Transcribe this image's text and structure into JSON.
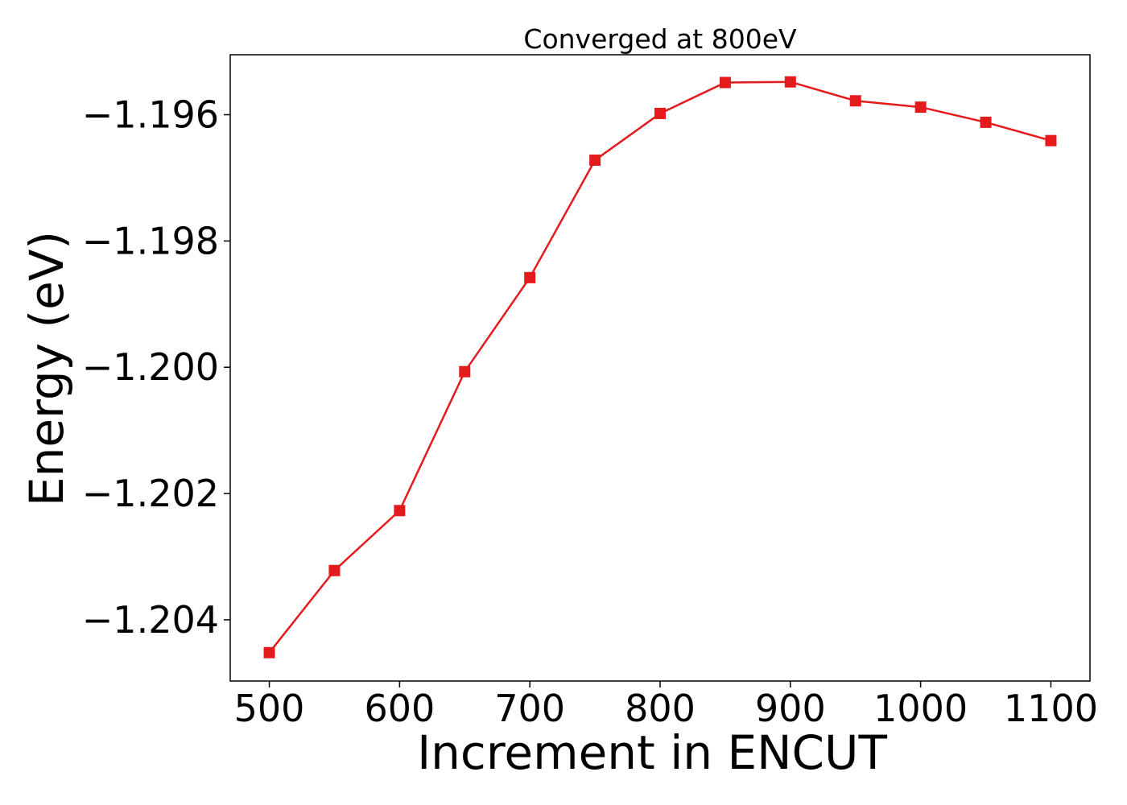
{
  "chart_data": {
    "type": "line",
    "title": "Converged at 800eV",
    "xlabel": "Increment in ENCUT",
    "ylabel": "Energy (eV)",
    "xlim": [
      470,
      1130
    ],
    "ylim": [
      -1.20497,
      -1.19505
    ],
    "xticks": [
      500,
      600,
      700,
      800,
      900,
      1000,
      1100
    ],
    "xtick_labels": [
      "500",
      "600",
      "700",
      "800",
      "900",
      "1000",
      "1100"
    ],
    "yticks": [
      -1.196,
      -1.198,
      -1.2,
      -1.202,
      -1.204
    ],
    "ytick_labels": [
      "−1.196",
      "−1.198",
      "−1.200",
      "−1.202",
      "−1.204"
    ],
    "grid": false,
    "series": [
      {
        "color": "#e41a1c",
        "marker": "square",
        "x": [
          500,
          550,
          600,
          650,
          700,
          750,
          800,
          850,
          900,
          950,
          1000,
          1050,
          1100
        ],
        "y": [
          -1.20452,
          -1.20322,
          -1.20227,
          -1.20007,
          -1.19858,
          -1.19672,
          -1.19598,
          -1.19549,
          -1.19548,
          -1.19578,
          -1.19588,
          -1.19612,
          -1.19641
        ]
      }
    ]
  }
}
